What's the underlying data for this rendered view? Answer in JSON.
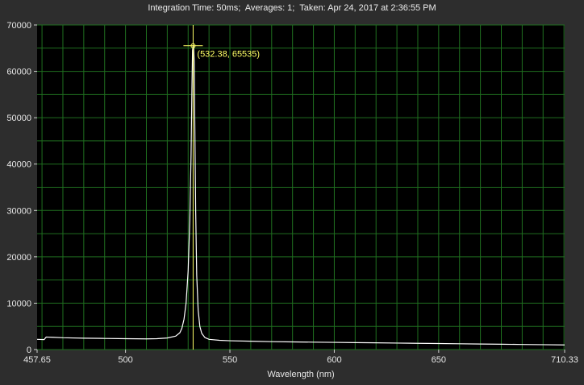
{
  "chart_data": {
    "type": "line",
    "title": "Integration Time: 50ms;  Averages: 1;  Taken: Apr 24, 2017 at 2:36:55 PM",
    "xlabel": "Wavelength (nm)",
    "ylabel": "",
    "xlim": [
      457.65,
      710.33
    ],
    "ylim": [
      0,
      70000
    ],
    "x_ticks": [
      457.65,
      500,
      550,
      600,
      650,
      710.33
    ],
    "x_tick_labels": [
      "457.65",
      "500",
      "550",
      "600",
      "650",
      "710.33"
    ],
    "y_ticks": [
      0,
      10000,
      20000,
      30000,
      40000,
      50000,
      60000,
      70000
    ],
    "y_tick_labels": [
      "0",
      "10000",
      "20000",
      "30000",
      "40000",
      "50000",
      "60000",
      "70000"
    ],
    "grid": true,
    "colors": {
      "background": "#000000",
      "grid": "#1f6e1f",
      "series": "#ffffff",
      "cursor": "#ffff66",
      "frame": "#2d2d2d"
    },
    "cursor": {
      "x": 532.38,
      "y": 65535,
      "label": "(532.38, 65535)"
    },
    "series": [
      {
        "points": [
          [
            457.65,
            2200
          ],
          [
            461,
            2150
          ],
          [
            462,
            2700
          ],
          [
            465,
            2650
          ],
          [
            470,
            2550
          ],
          [
            480,
            2450
          ],
          [
            490,
            2400
          ],
          [
            500,
            2350
          ],
          [
            510,
            2300
          ],
          [
            515,
            2350
          ],
          [
            520,
            2500
          ],
          [
            524,
            2900
          ],
          [
            526,
            3600
          ],
          [
            527,
            4600
          ],
          [
            528,
            6500
          ],
          [
            529,
            10000
          ],
          [
            530,
            17000
          ],
          [
            530.8,
            28000
          ],
          [
            531.4,
            42000
          ],
          [
            531.8,
            56000
          ],
          [
            532.1,
            64500
          ],
          [
            532.38,
            65535
          ],
          [
            532.6,
            65535
          ],
          [
            532.9,
            62000
          ],
          [
            533.2,
            48000
          ],
          [
            533.6,
            30000
          ],
          [
            534.1,
            16000
          ],
          [
            534.8,
            8500
          ],
          [
            535.6,
            5000
          ],
          [
            536.5,
            3500
          ],
          [
            538,
            2600
          ],
          [
            540,
            2200
          ],
          [
            545,
            2000
          ],
          [
            550,
            1900
          ],
          [
            560,
            1800
          ],
          [
            570,
            1700
          ],
          [
            580,
            1650
          ],
          [
            590,
            1600
          ],
          [
            600,
            1550
          ],
          [
            610,
            1500
          ],
          [
            620,
            1450
          ],
          [
            630,
            1400
          ],
          [
            640,
            1350
          ],
          [
            650,
            1300
          ],
          [
            660,
            1250
          ],
          [
            670,
            1200
          ],
          [
            680,
            1150
          ],
          [
            690,
            1100
          ],
          [
            700,
            1050
          ],
          [
            710.33,
            1000
          ]
        ]
      }
    ]
  }
}
